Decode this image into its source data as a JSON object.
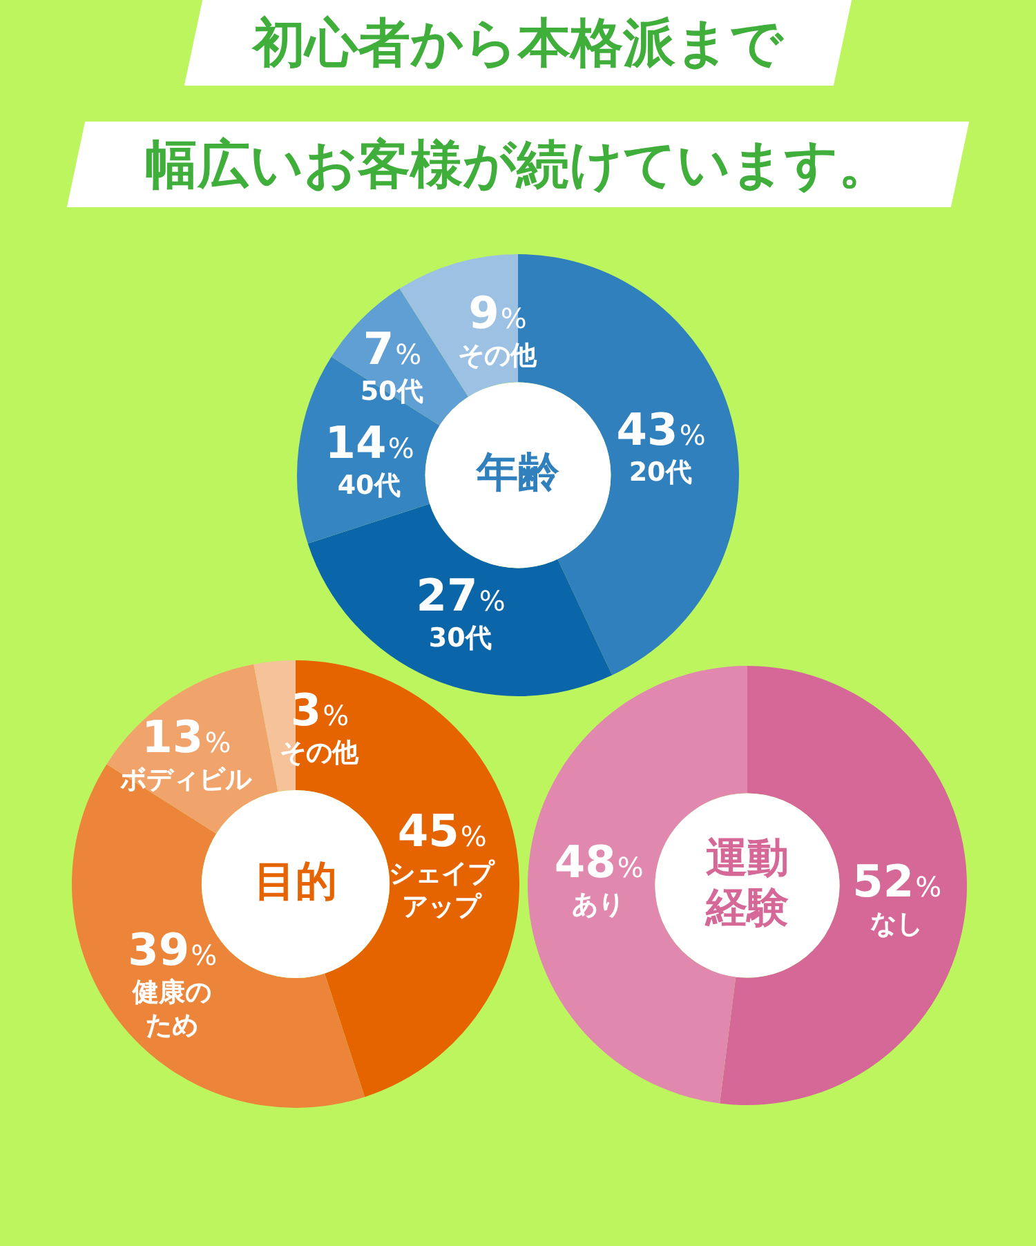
{
  "chart_data": [
    {
      "type": "other",
      "title": "初心者から本格派まで",
      "subtitle": "幅広いお客様が続けています。"
    },
    {
      "type": "donut",
      "title": "年齢",
      "categories": [
        "20代",
        "30代",
        "40代",
        "50代",
        "その他"
      ],
      "values": [
        43,
        27,
        14,
        7,
        9
      ],
      "value_labels": [
        "43%",
        "27%",
        "14%",
        "7%",
        "9%"
      ],
      "colors": [
        "#2f80bd",
        "#0a66a8",
        "#3585c3",
        "#5f9fd3",
        "#9cc1e3"
      ]
    },
    {
      "type": "donut",
      "title": "目的",
      "categories": [
        "シェイプアップ",
        "健康のため",
        "ボディビル",
        "その他"
      ],
      "values": [
        45,
        39,
        13,
        3
      ],
      "value_labels": [
        "45%",
        "39%",
        "13%",
        "3%"
      ],
      "colors": [
        "#e66400",
        "#ec843a",
        "#f0a46c",
        "#f5c29a"
      ]
    },
    {
      "type": "donut",
      "title": "運動経験",
      "categories": [
        "なし",
        "あり"
      ],
      "values": [
        52,
        48
      ],
      "value_labels": [
        "52%",
        "48%"
      ],
      "colors": [
        "#d66898",
        "#e088ae"
      ]
    }
  ]
}
